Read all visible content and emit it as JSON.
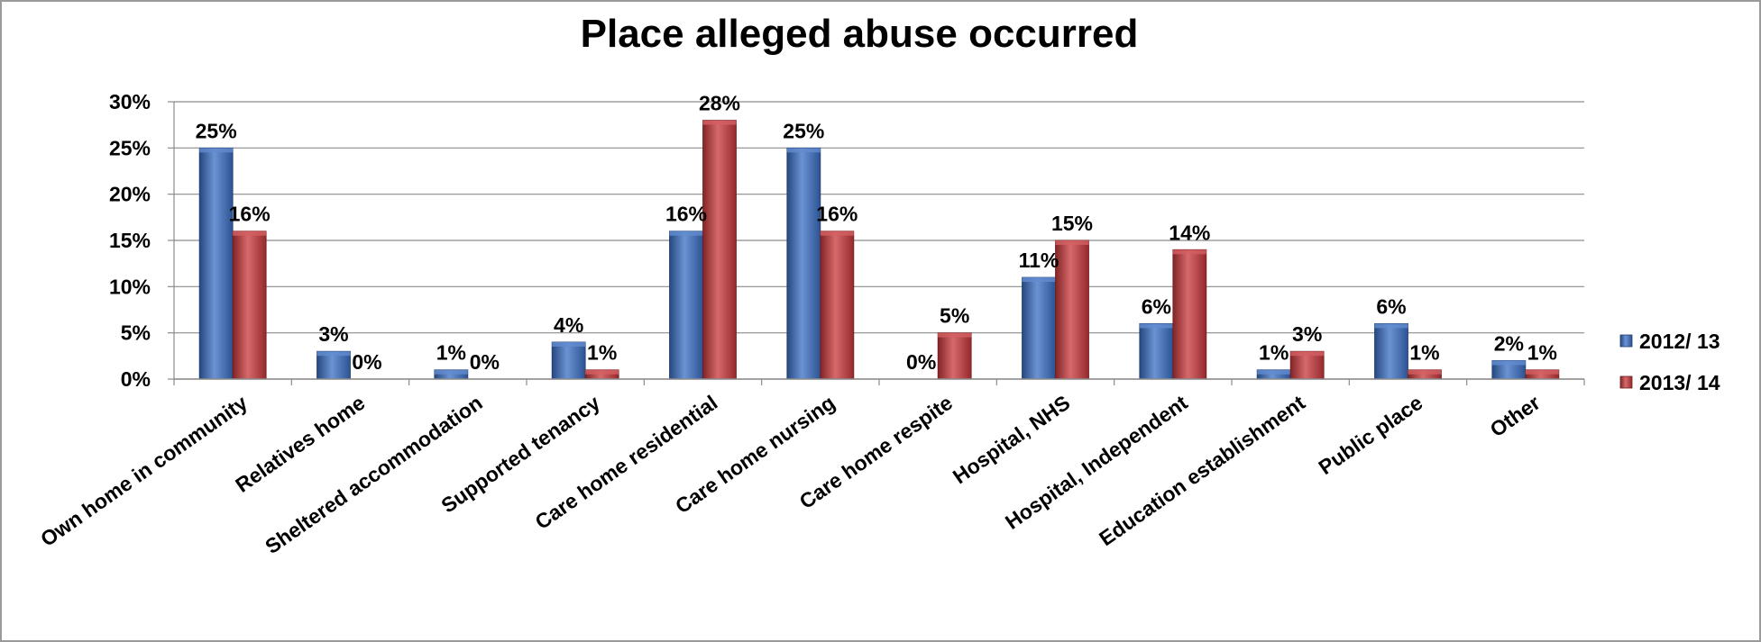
{
  "chart_data": {
    "type": "bar",
    "title": "Place alleged abuse occurred",
    "categories": [
      "Own home in community",
      "Relatives home",
      "Sheltered accommodation",
      "Supported tenancy",
      "Care home residential",
      "Care home nursing",
      "Care home respite",
      "Hospital, NHS",
      "Hospital, Independent",
      "Education establishment",
      "Public place",
      "Other"
    ],
    "series": [
      {
        "name": "2012/ 13",
        "color": "#3a6fc4",
        "values": [
          25,
          3,
          1,
          4,
          16,
          25,
          0,
          11,
          6,
          1,
          6,
          2
        ],
        "labels": [
          "25%",
          "3%",
          "1%",
          "4%",
          "16%",
          "25%",
          "0%",
          "11%",
          "6%",
          "1%",
          "6%",
          "2%"
        ]
      },
      {
        "name": "2013/ 14",
        "color": "#c8373a",
        "values": [
          16,
          0,
          0,
          1,
          28,
          16,
          5,
          15,
          14,
          3,
          1,
          1
        ],
        "labels": [
          "16%",
          "0%",
          "0%",
          "1%",
          "28%",
          "16%",
          "5%",
          "15%",
          "14%",
          "3%",
          "1%",
          "1%"
        ]
      }
    ],
    "yticks": [
      "0%",
      "5%",
      "10%",
      "15%",
      "20%",
      "25%",
      "30%"
    ],
    "ylim": [
      0,
      30
    ],
    "grid": true,
    "legend_position": "right"
  }
}
